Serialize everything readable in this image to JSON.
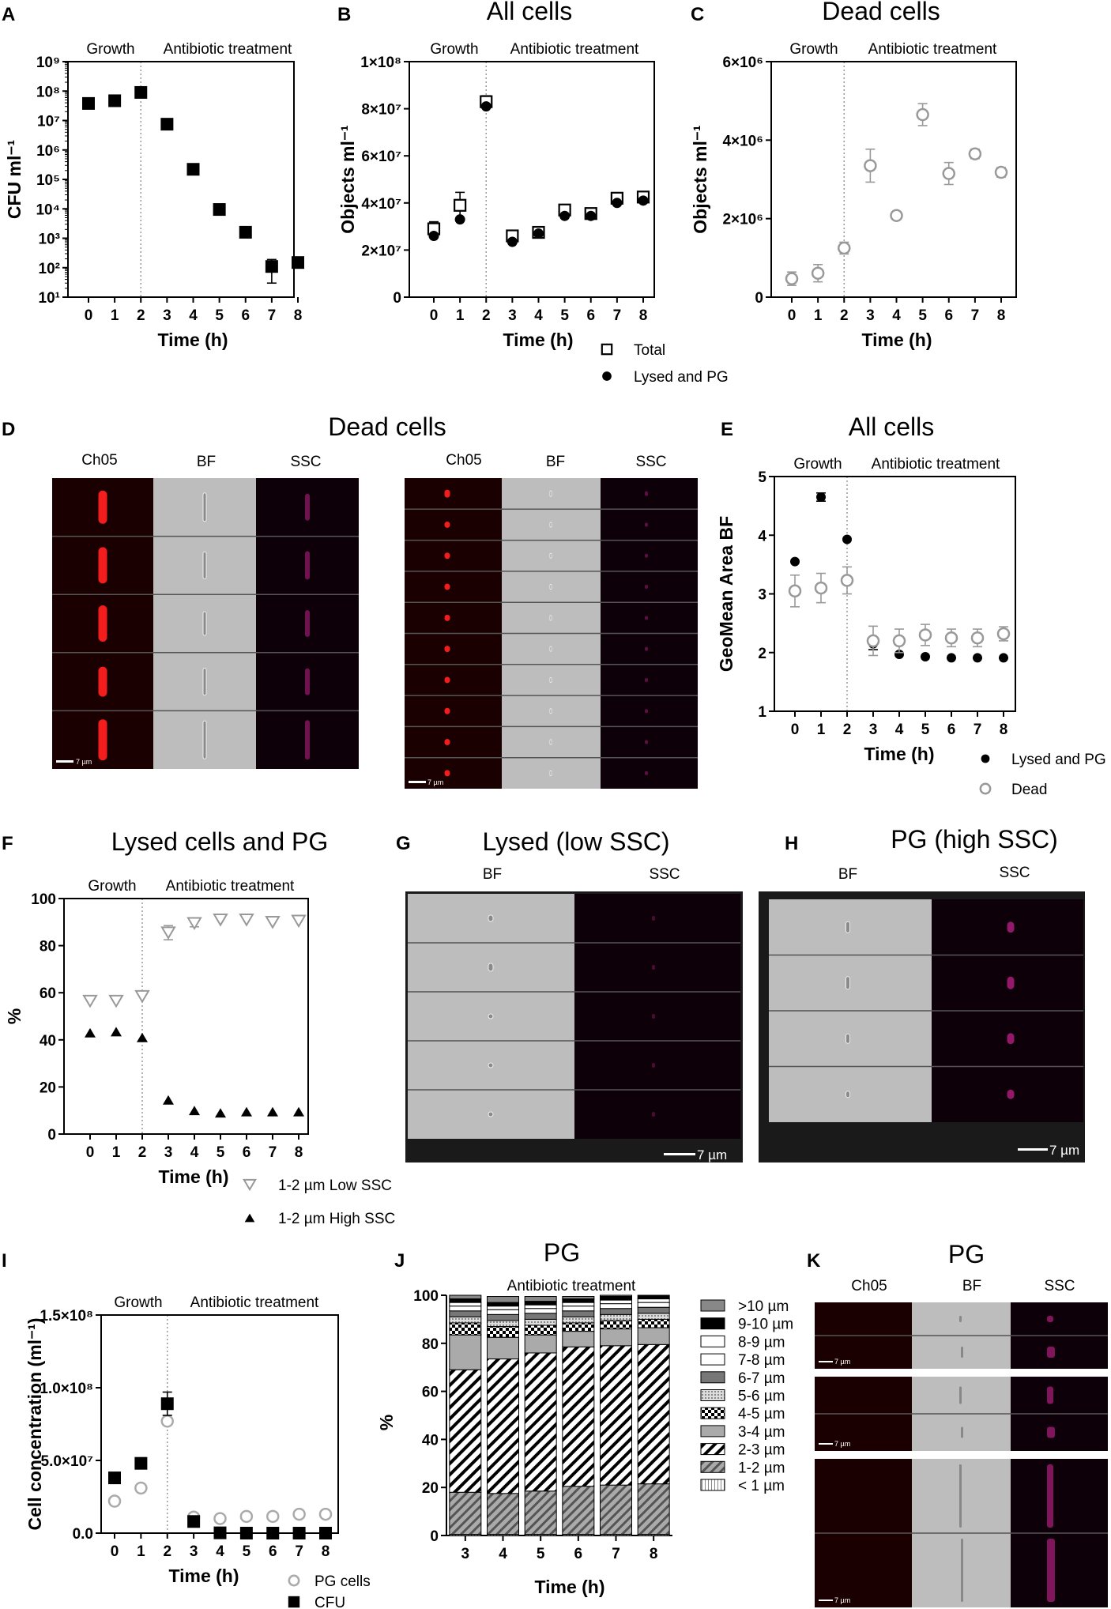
{
  "panel_letters": {
    "A": "A",
    "B": "B",
    "C": "C",
    "D": "D",
    "E": "E",
    "F": "F",
    "G": "G",
    "H": "H",
    "I": "I",
    "J": "J",
    "K": "K"
  },
  "panel_titles": {
    "B": "All cells",
    "C": "Dead cells",
    "D": "Dead cells",
    "E": "All cells",
    "F": "Lysed cells and PG",
    "G": "Lysed (low SSC)",
    "H": "PG (high SSC)",
    "J": "PG",
    "K": "PG"
  },
  "phase_labels": {
    "growth": "Growth",
    "antibiotic": "Antibiotic treatment"
  },
  "image_panels": {
    "channels_D": [
      "Ch05",
      "BF",
      "SSC"
    ],
    "channels_G": [
      "BF",
      "SSC"
    ],
    "channels_K": [
      "Ch05",
      "BF",
      "SSC"
    ],
    "scale_bar": "7 µm"
  },
  "chart_data": [
    {
      "id": "A",
      "type": "scatter",
      "xlabel": "Time (h)",
      "ylabel": "CFU ml⁻¹",
      "yscale": "log",
      "ylim": [
        10,
        1000000000
      ],
      "yticks": [
        "10¹",
        "10²",
        "10³",
        "10⁴",
        "10⁵",
        "10⁶",
        "10⁷",
        "10⁸",
        "10⁹"
      ],
      "x": [
        0,
        1,
        2,
        3,
        4,
        5,
        6,
        7,
        8
      ],
      "series": [
        {
          "values": [
            38000000,
            47000000,
            90000000,
            7500000,
            220000,
            9500,
            1600,
            110,
            150
          ],
          "err_hi": [
            0,
            0,
            0,
            0,
            0,
            0,
            0,
            80,
            60
          ],
          "err_lo": [
            0,
            0,
            0,
            0,
            0,
            0,
            0,
            80,
            40
          ],
          "marker": "square-filled"
        }
      ],
      "vline": 2
    },
    {
      "id": "B",
      "type": "scatter",
      "xlabel": "Time (h)",
      "ylabel": "Objects ml⁻¹",
      "ylim": [
        0,
        100000000
      ],
      "yticks": [
        "0",
        "2×10⁷",
        "4×10⁷",
        "6×10⁷",
        "8×10⁷",
        "1×10⁸"
      ],
      "x": [
        0,
        1,
        2,
        3,
        4,
        5,
        6,
        7,
        8
      ],
      "series": [
        {
          "name": "Total",
          "values": [
            29000000,
            39000000,
            83000000,
            26000000,
            27500000,
            37000000,
            35500000,
            42000000,
            42500000
          ],
          "err": [
            3000000,
            5500000,
            2500000,
            1000000,
            1200000,
            1500000,
            1000000,
            1000000,
            1000000
          ],
          "marker": "square-open"
        },
        {
          "name": "Lysed and PG",
          "values": [
            26000000,
            33000000,
            81000000,
            23500000,
            27000000,
            34500000,
            34500000,
            40000000,
            41000000
          ],
          "err": [
            0,
            0,
            0,
            0,
            0,
            0,
            0,
            0,
            0
          ],
          "marker": "circle-filled"
        }
      ],
      "vline": 2
    },
    {
      "id": "C",
      "type": "scatter",
      "xlabel": "Time (h)",
      "ylabel": "Objects ml⁻¹",
      "ylim": [
        0,
        6000000
      ],
      "yticks": [
        "0",
        "2×10⁶",
        "4×10⁶",
        "6×10⁶"
      ],
      "x": [
        0,
        1,
        2,
        3,
        4,
        5,
        6,
        7,
        8
      ],
      "series": [
        {
          "values": [
            470000,
            610000,
            1250000,
            3350000,
            2080000,
            4650000,
            3150000,
            3650000,
            3180000
          ],
          "err": [
            170000,
            220000,
            150000,
            420000,
            50000,
            280000,
            280000,
            120000,
            120000
          ],
          "marker": "circle-open"
        }
      ],
      "vline": 2
    },
    {
      "id": "E",
      "type": "scatter",
      "xlabel": "Time (h)",
      "ylabel": "GeoMean Area BF",
      "ylim": [
        1,
        5
      ],
      "yticks": [
        "1",
        "2",
        "3",
        "4",
        "5"
      ],
      "x": [
        0,
        1,
        2,
        3,
        4,
        5,
        6,
        7,
        8
      ],
      "series": [
        {
          "name": "Lysed and PG",
          "values": [
            3.55,
            4.65,
            3.93,
            2.15,
            1.97,
            1.93,
            1.91,
            1.91,
            1.91
          ],
          "err": [
            0,
            0.07,
            0,
            0.1,
            0,
            0,
            0,
            0,
            0
          ],
          "marker": "circle-filled"
        },
        {
          "name": "Dead",
          "values": [
            3.05,
            3.1,
            3.23,
            2.2,
            2.2,
            2.3,
            2.25,
            2.25,
            2.32
          ],
          "err": [
            0.27,
            0.25,
            0.23,
            0.25,
            0.2,
            0.18,
            0.15,
            0.15,
            0.12
          ],
          "marker": "circle-open"
        }
      ],
      "vline": 2
    },
    {
      "id": "F",
      "type": "scatter",
      "xlabel": "Time (h)",
      "ylabel": "%",
      "ylim": [
        0,
        100
      ],
      "yticks": [
        "0",
        "20",
        "40",
        "60",
        "80",
        "100"
      ],
      "x": [
        0,
        1,
        2,
        3,
        4,
        5,
        6,
        7,
        8
      ],
      "series": [
        {
          "name": "1-2 µm  Low SSC",
          "values": [
            56.5,
            56.5,
            58.5,
            85.5,
            89.5,
            91,
            91,
            90,
            90.5
          ],
          "err": [
            0,
            0,
            0,
            3,
            1.5,
            0,
            0,
            0,
            0
          ],
          "marker": "triangle-down-open"
        },
        {
          "name": "1-2 µm High SSC",
          "values": [
            43,
            43.5,
            41,
            14.5,
            10,
            9,
            9.5,
            9.5,
            9.5
          ],
          "err": [
            0,
            0,
            0,
            0,
            0,
            0,
            0,
            0,
            0
          ],
          "marker": "triangle-up-filled"
        }
      ],
      "vline": 2
    },
    {
      "id": "I",
      "type": "scatter",
      "xlabel": "Time (h)",
      "ylabel": "Cell concentration (ml⁻¹)",
      "ylim": [
        0,
        150000000
      ],
      "yticks": [
        "0.0",
        "5.0×10⁷",
        "1.0×10⁸",
        "1.5×10⁸"
      ],
      "x": [
        0,
        1,
        2,
        3,
        4,
        5,
        6,
        7,
        8
      ],
      "series": [
        {
          "name": "PG cells",
          "values": [
            22000000,
            31000000,
            77000000,
            11000000,
            10000000,
            11500000,
            11500000,
            13000000,
            13000000
          ],
          "err": [
            0,
            0,
            0,
            0,
            0,
            0,
            0,
            0,
            0
          ],
          "marker": "circle-open"
        },
        {
          "name": "CFU",
          "values": [
            38000000,
            48000000,
            89000000,
            8000000,
            200000,
            10000,
            1600,
            110,
            150
          ],
          "err": [
            0,
            0,
            8000000,
            0,
            0,
            0,
            0,
            0,
            0
          ],
          "marker": "square-filled"
        }
      ],
      "vline": 2
    },
    {
      "id": "J",
      "type": "bar",
      "stacked": true,
      "xlabel": "Time (h)",
      "ylabel": "%",
      "ylim": [
        0,
        100
      ],
      "yticks": [
        "0",
        "20",
        "40",
        "60",
        "80",
        "100"
      ],
      "categories": [
        "3",
        "4",
        "5",
        "6",
        "7",
        "8"
      ],
      "series": [
        {
          "name": "< 1 µm",
          "values": [
            0.5,
            0.5,
            0.5,
            0.5,
            0.5,
            0.5
          ]
        },
        {
          "name": "1-2 µm",
          "values": [
            17.5,
            17,
            18,
            20,
            20.5,
            21
          ]
        },
        {
          "name": "2-3 µm",
          "values": [
            51,
            56,
            57.5,
            58,
            58,
            58
          ]
        },
        {
          "name": "3-4 µm",
          "values": [
            14.5,
            9,
            7.5,
            6.5,
            7,
            7
          ]
        },
        {
          "name": "4-5 µm",
          "values": [
            5,
            4.5,
            4,
            3.5,
            3.5,
            3.5
          ]
        },
        {
          "name": "5-6 µm",
          "values": [
            2.5,
            2.5,
            2.5,
            2.5,
            2.5,
            2.5
          ]
        },
        {
          "name": "6-7 µm",
          "values": [
            2.5,
            2.5,
            2.5,
            2.5,
            2.5,
            2.5
          ]
        },
        {
          "name": "7-8 µm",
          "values": [
            2,
            2,
            2,
            2,
            2,
            2
          ]
        },
        {
          "name": "8-9 µm",
          "values": [
            1.5,
            1.5,
            1.5,
            1.5,
            1.5,
            1.5
          ]
        },
        {
          "name": "9-10 µm",
          "values": [
            1.5,
            1.5,
            1.5,
            1.5,
            1.5,
            1.5
          ]
        },
        {
          "name": ">10 µm",
          "values": [
            1.5,
            2.5,
            2,
            1,
            0.5,
            0
          ]
        }
      ],
      "legend_order": [
        ">10 µm",
        "9-10 µm",
        "8-9 µm",
        "7-8 µm",
        "6-7 µm",
        "5-6 µm",
        "4-5 µm",
        "3-4 µm",
        "2-3 µm",
        "1-2 µm",
        "< 1 µm"
      ]
    }
  ]
}
